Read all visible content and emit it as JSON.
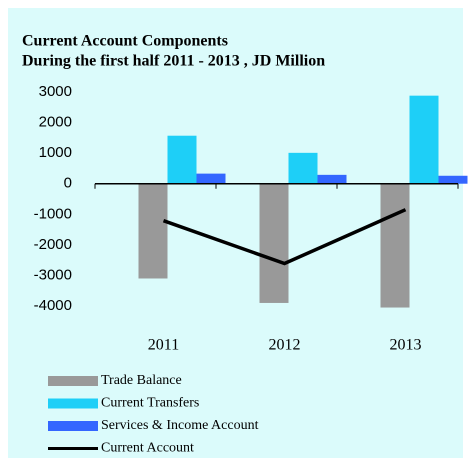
{
  "chart_data": {
    "type": "bar",
    "title": "Current Account Components",
    "subtitle": "During the first half 2011 - 2013 ,  JD Million",
    "categories": [
      "2011",
      "2012",
      "2013"
    ],
    "series": [
      {
        "name": "Trade Balance",
        "color": "#999999",
        "values": [
          -3100,
          -3900,
          -4050
        ]
      },
      {
        "name": "Current Transfers",
        "color": "#1ecff7",
        "values": [
          1570,
          1010,
          2880
        ]
      },
      {
        "name": "Services & Income Account",
        "color": "#3366ff",
        "values": [
          330,
          290,
          260
        ]
      },
      {
        "name": "Current Account",
        "type": "line",
        "color": "#000000",
        "values": [
          -1210,
          -2610,
          -850
        ]
      }
    ],
    "ylim": [
      -4000,
      3000
    ],
    "yticks": [
      -4000,
      -3000,
      -2000,
      -1000,
      0,
      1000,
      2000,
      3000
    ]
  }
}
